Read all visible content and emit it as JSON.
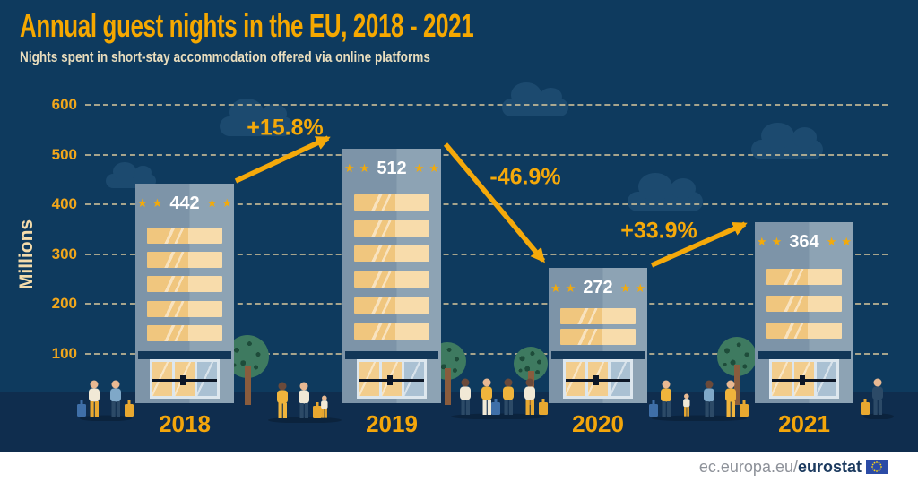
{
  "header": {
    "title": "Annual guest nights in the EU, 2018 - 2021",
    "subtitle": "Nights spent in short-stay accommodation offered via online platforms"
  },
  "footer": {
    "url_prefix": "ec.europa.eu/",
    "url_bold": "eurostat",
    "flag_icon": "eu-flag-icon"
  },
  "chart_data": {
    "type": "bar",
    "title": "Annual guest nights in the EU, 2018 - 2021",
    "subtitle": "Nights spent in short-stay accommodation offered via online platforms",
    "categories": [
      "2018",
      "2019",
      "2020",
      "2021"
    ],
    "values": [
      442,
      512,
      272,
      364
    ],
    "data_labels": [
      "442",
      "512",
      "272",
      "364"
    ],
    "ylabel": "Millions",
    "ylim": [
      0,
      600
    ],
    "yticks": [
      0,
      100,
      200,
      300,
      400,
      500,
      600
    ],
    "grid": true,
    "legend": "none",
    "bar_motif": "hotel building with 4-star rating, lit windows and entrance door",
    "window_rows": [
      5,
      6,
      2,
      3
    ],
    "stars_per_side": 2,
    "changes": [
      {
        "from": "2018",
        "to": "2019",
        "label": "+15.8%",
        "percent": 15.8
      },
      {
        "from": "2019",
        "to": "2020",
        "label": "-46.9%",
        "percent": -46.9
      },
      {
        "from": "2020",
        "to": "2021",
        "label": "+33.9%",
        "percent": 33.9
      }
    ]
  },
  "colors": {
    "background": "#0e3a5e",
    "ground": "#0f2d4e",
    "accent_gold": "#f5a90a",
    "title_gold": "#f6a800",
    "cream_text": "#e9ddbd",
    "axis_tick_gold": "#f2a71b",
    "building_body_left": "#7d94a8",
    "building_body_right": "#8da3b4",
    "window_gold": "#f0c67e",
    "window_gold_light": "#f8dcab",
    "entrance_navy": "#123758",
    "star_gold": "#f3aa0a",
    "value_text": "#ffffff",
    "cloud": "#1c4a6f",
    "tree_green": "#3e7a60",
    "tree_trunk": "#8a5c3d",
    "footer_gray": "#8d9199",
    "footer_navy": "#1b3a5f",
    "eu_blue": "#2b4ba6",
    "eu_star_gold": "#ffd617"
  }
}
